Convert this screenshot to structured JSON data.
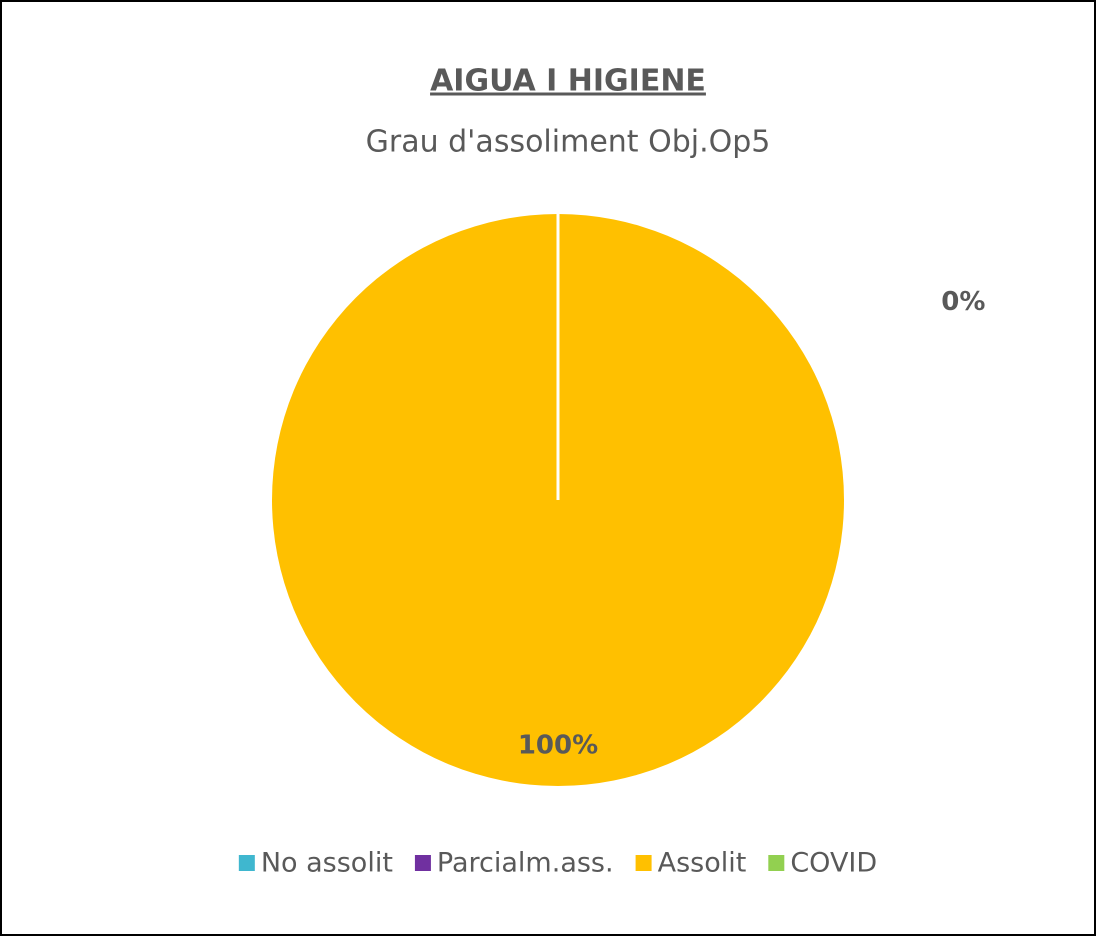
{
  "chart_data": {
    "type": "pie",
    "title": "AIGUA I HIGIENE",
    "subtitle": "Grau d'assoliment Obj.Op5",
    "categories": [
      "No assolit",
      "Parcialm.ass.",
      "Assolit",
      "COVID"
    ],
    "values": [
      0,
      0,
      100,
      0
    ],
    "value_labels": [
      "0%",
      null,
      "100%",
      null
    ],
    "colors": [
      "#3fb7cf",
      "#7030a0",
      "#ffc000",
      "#92d050"
    ],
    "legend": "bottom"
  }
}
